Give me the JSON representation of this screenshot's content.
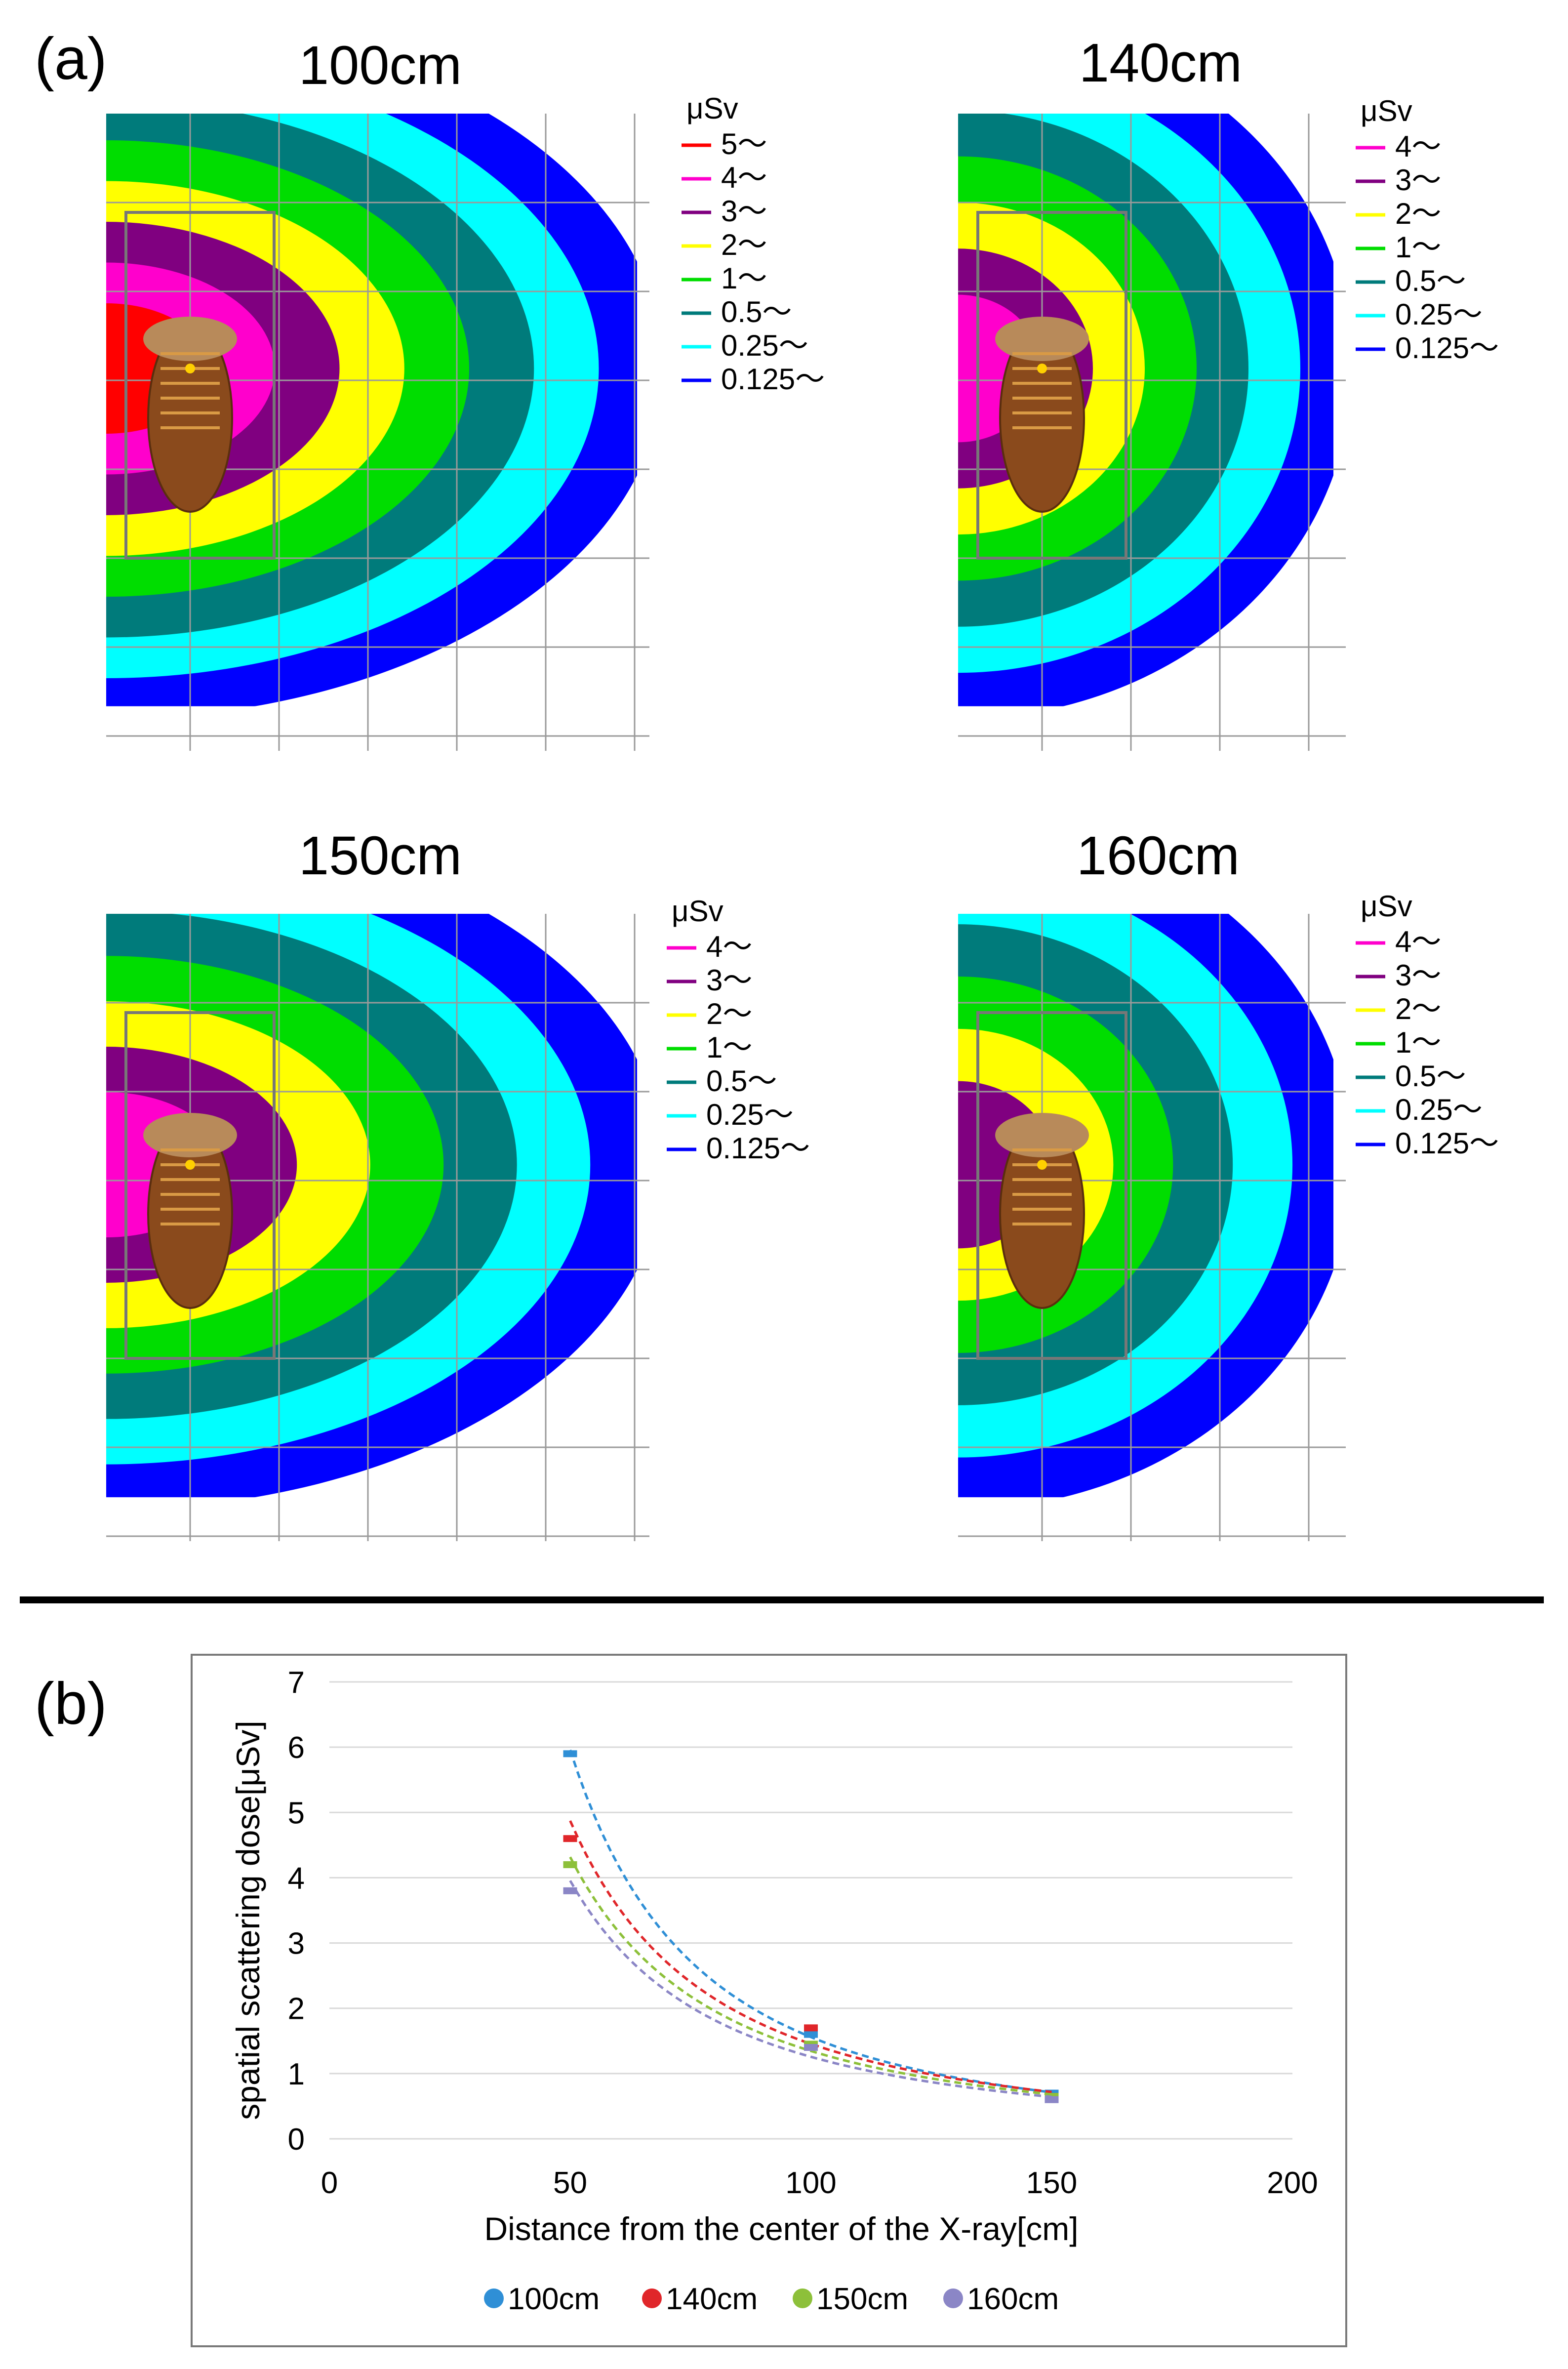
{
  "panel_labels": {
    "a": "(a)",
    "b": "(b)"
  },
  "heatmaps": [
    {
      "title": "100cm",
      "legend_unit": "μSv",
      "legend": [
        {
          "label": "5～",
          "color": "#ff0000"
        },
        {
          "label": "4～",
          "color": "#ff00cc"
        },
        {
          "label": "3～",
          "color": "#800080"
        },
        {
          "label": "2～",
          "color": "#ffff00"
        },
        {
          "label": "1～",
          "color": "#00dd00"
        },
        {
          "label": "0.5～",
          "color": "#007b7b"
        },
        {
          "label": "0.25～",
          "color": "#00ffff"
        },
        {
          "label": "0.125～",
          "color": "#0000ff"
        }
      ]
    },
    {
      "title": "140cm",
      "legend_unit": "μSv",
      "legend": [
        {
          "label": "4～",
          "color": "#ff00cc"
        },
        {
          "label": "3～",
          "color": "#800080"
        },
        {
          "label": "2～",
          "color": "#ffff00"
        },
        {
          "label": "1～",
          "color": "#00dd00"
        },
        {
          "label": "0.5～",
          "color": "#007b7b"
        },
        {
          "label": "0.25～",
          "color": "#00ffff"
        },
        {
          "label": "0.125～",
          "color": "#0000ff"
        }
      ]
    },
    {
      "title": "150cm",
      "legend_unit": "μSv",
      "legend": [
        {
          "label": "4～",
          "color": "#ff00cc"
        },
        {
          "label": "3～",
          "color": "#800080"
        },
        {
          "label": "2～",
          "color": "#ffff00"
        },
        {
          "label": "1～",
          "color": "#00dd00"
        },
        {
          "label": "0.5～",
          "color": "#007b7b"
        },
        {
          "label": "0.25～",
          "color": "#00ffff"
        },
        {
          "label": "0.125～",
          "color": "#0000ff"
        }
      ]
    },
    {
      "title": "160cm",
      "legend_unit": "μSv",
      "legend": [
        {
          "label": "4～",
          "color": "#ff00cc"
        },
        {
          "label": "3～",
          "color": "#800080"
        },
        {
          "label": "2～",
          "color": "#ffff00"
        },
        {
          "label": "1～",
          "color": "#00dd00"
        },
        {
          "label": "0.5～",
          "color": "#007b7b"
        },
        {
          "label": "0.25～",
          "color": "#00ffff"
        },
        {
          "label": "0.125～",
          "color": "#0000ff"
        }
      ]
    }
  ],
  "chart_data": {
    "type": "scatter",
    "xlabel": "Distance from the center of the X-ray[cm]",
    "ylabel": "spatial scattering dose[μSv]",
    "xlim": [
      0,
      200
    ],
    "ylim": [
      0,
      7
    ],
    "xticks": [
      0,
      50,
      100,
      150,
      200
    ],
    "yticks": [
      0,
      1,
      2,
      3,
      4,
      5,
      6,
      7
    ],
    "grid": true,
    "trendline": "power (dashed)",
    "legend_position": "bottom",
    "series": [
      {
        "name": "100cm",
        "color": "#2f8fd6",
        "x": [
          50,
          100,
          150
        ],
        "y": [
          5.9,
          1.6,
          0.7
        ]
      },
      {
        "name": "140cm",
        "color": "#e0262a",
        "x": [
          50,
          100,
          150
        ],
        "y": [
          4.6,
          1.7,
          0.65
        ]
      },
      {
        "name": "150cm",
        "color": "#8dc03a",
        "x": [
          50,
          100,
          150
        ],
        "y": [
          4.2,
          1.45,
          0.65
        ]
      },
      {
        "name": "160cm",
        "color": "#8b86c6",
        "x": [
          50,
          100,
          150
        ],
        "y": [
          3.8,
          1.4,
          0.6
        ]
      }
    ]
  }
}
